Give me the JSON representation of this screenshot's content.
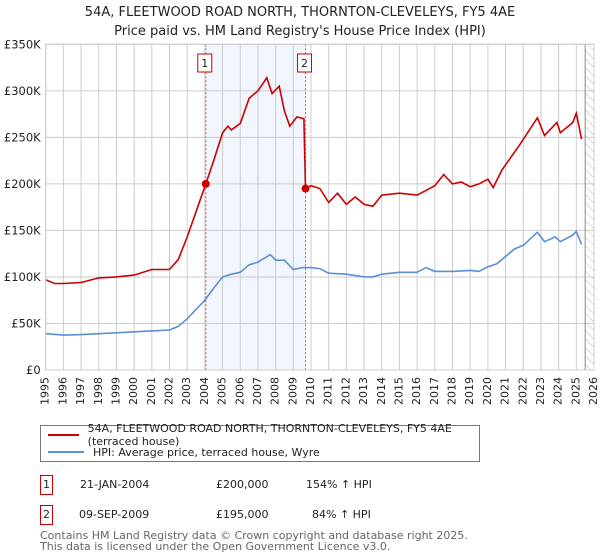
{
  "title": "54A, FLEETWOOD ROAD NORTH, THORNTON-CLEVELEYS, FY5 4AE",
  "subtitle": "Price paid vs. HM Land Registry's House Price Index (HPI)",
  "legend": [
    {
      "label": "54A, FLEETWOOD ROAD NORTH, THORNTON-CLEVELEYS, FY5 4AE (terraced house)",
      "color": "#cc0000"
    },
    {
      "label": "HPI: Average price, terraced house, Wyre",
      "color": "#5b8fd4"
    }
  ],
  "sales": [
    {
      "n": "1",
      "date": "21-JAN-2004",
      "price": "£200,000",
      "hpi": "154% ↑ HPI"
    },
    {
      "n": "2",
      "date": "09-SEP-2009",
      "price": "£195,000",
      "hpi": "84% ↑ HPI"
    }
  ],
  "footer": [
    "Contains HM Land Registry data © Crown copyright and database right 2025.",
    "This data is licensed under the Open Government Licence v3.0."
  ],
  "chart_data": {
    "type": "line",
    "xlim": [
      1995,
      2026
    ],
    "ylim": [
      0,
      350000
    ],
    "yticks": [
      0,
      50000,
      100000,
      150000,
      200000,
      250000,
      300000,
      350000
    ],
    "ytick_labels": [
      "£0",
      "£50K",
      "£100K",
      "£150K",
      "£200K",
      "£250K",
      "£300K",
      "£350K"
    ],
    "xticks": [
      "1995",
      "1996",
      "1997",
      "1998",
      "1999",
      "2000",
      "2001",
      "2002",
      "2003",
      "2004",
      "2005",
      "2006",
      "2007",
      "2008",
      "2009",
      "2010",
      "2011",
      "2012",
      "2013",
      "2014",
      "2015",
      "2016",
      "2017",
      "2018",
      "2019",
      "2020",
      "2021",
      "2022",
      "2023",
      "2024",
      "2025",
      "2026"
    ],
    "shaded_range": [
      2004.05,
      2009.69
    ],
    "forecast_hatch_from": 2025.5,
    "markers": [
      {
        "label": "1",
        "x": 2004.05,
        "y": 200000
      },
      {
        "label": "2",
        "x": 2009.69,
        "y": 195000
      }
    ],
    "series": [
      {
        "name": "property",
        "color": "#cc0000",
        "x": [
          1995,
          1995.5,
          1996,
          1997,
          1998,
          1999,
          2000,
          2001,
          2002,
          2002.5,
          2003,
          2003.5,
          2004.05,
          2004.5,
          2005,
          2005.3,
          2005.5,
          2006,
          2006.5,
          2007,
          2007.5,
          2007.8,
          2008.2,
          2008.5,
          2008.8,
          2009.2,
          2009.6,
          2009.69,
          2010,
          2010.5,
          2011,
          2011.5,
          2012,
          2012.5,
          2013,
          2013.5,
          2014,
          2015,
          2016,
          2016.5,
          2017,
          2017.5,
          2018,
          2018.5,
          2019,
          2019.5,
          2020,
          2020.3,
          2020.8,
          2021.8,
          2022.8,
          2023.2,
          2023.9,
          2024.1,
          2024.8,
          2025.0,
          2025.3
        ],
        "y": [
          97,
          93,
          93,
          94,
          99,
          100,
          102,
          108,
          108,
          119,
          143,
          170,
          200,
          225,
          255,
          262,
          258,
          265,
          292,
          300,
          314,
          297,
          305,
          278,
          262,
          272,
          270,
          195,
          198,
          195,
          180,
          190,
          178,
          186,
          178,
          176,
          188,
          190,
          188,
          193,
          198,
          210,
          200,
          202,
          197,
          200,
          205,
          196,
          215,
          242,
          271,
          252,
          266,
          255,
          266,
          276,
          248
        ]
      },
      {
        "name": "hpi",
        "color": "#5b8fd4",
        "x": [
          1995,
          1996,
          1997,
          1998,
          1999,
          2000,
          2001,
          2002,
          2002.5,
          2003,
          2003.5,
          2004,
          2004.5,
          2005,
          2005.5,
          2006,
          2006.5,
          2007,
          2007.7,
          2008,
          2008.5,
          2009,
          2009.5,
          2010,
          2010.5,
          2011,
          2012,
          2013,
          2013.5,
          2014,
          2015,
          2016,
          2016.5,
          2017,
          2018,
          2019,
          2019.5,
          2020,
          2020.5,
          2021,
          2021.5,
          2022,
          2022.8,
          2023.2,
          2023.8,
          2024.1,
          2024.8,
          2025.0,
          2025.3
        ],
        "y": [
          39,
          37.5,
          38,
          39,
          40,
          41,
          42,
          43,
          47,
          55,
          65,
          75,
          88,
          100,
          103,
          105,
          113,
          116,
          124,
          118,
          118,
          108,
          110,
          110,
          109,
          104,
          103,
          100,
          100,
          103,
          105,
          105,
          110,
          106,
          106,
          107,
          106,
          111,
          114,
          122,
          130,
          134,
          148,
          138,
          143,
          138,
          145,
          149,
          135
        ]
      }
    ]
  }
}
